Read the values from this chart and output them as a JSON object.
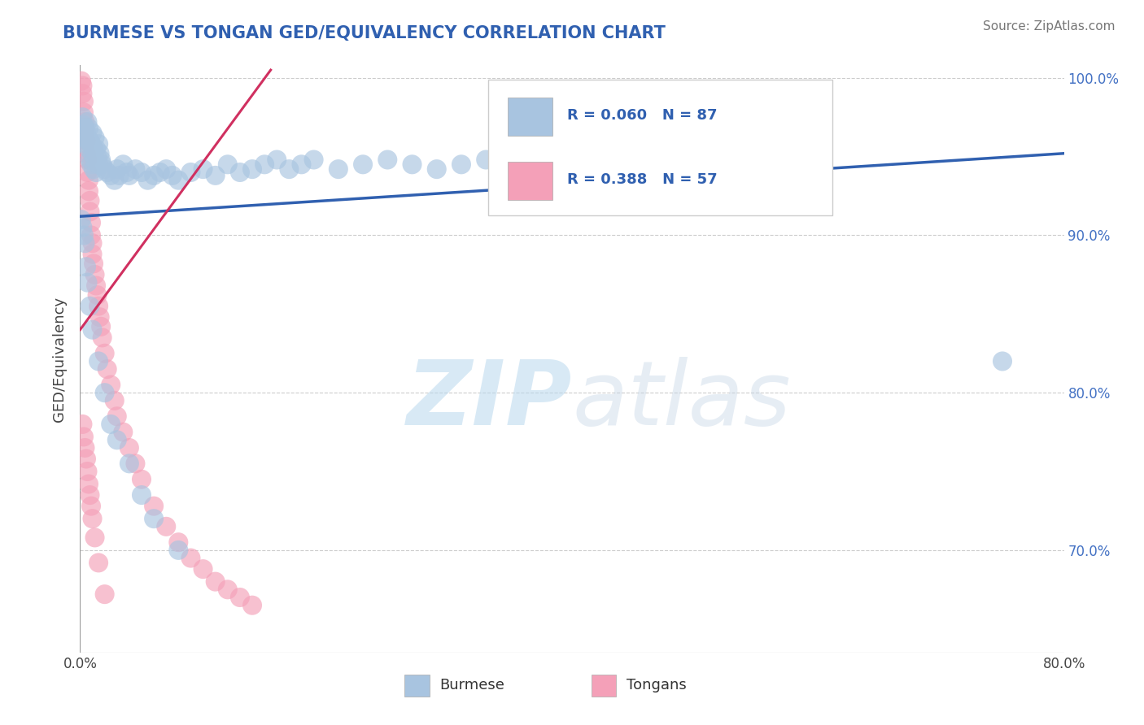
{
  "title": "BURMESE VS TONGAN GED/EQUIVALENCY CORRELATION CHART",
  "source_text": "Source: ZipAtlas.com",
  "ylabel": "GED/Equivalency",
  "xlim": [
    0.0,
    0.8
  ],
  "ylim": [
    0.635,
    1.008
  ],
  "xticks": [
    0.0,
    0.1,
    0.2,
    0.3,
    0.4,
    0.5,
    0.6,
    0.7,
    0.8
  ],
  "xticklabels": [
    "0.0%",
    "",
    "",
    "",
    "",
    "",
    "",
    "",
    "80.0%"
  ],
  "ytick_vals": [
    0.7,
    0.8,
    0.9,
    1.0
  ],
  "ytick_labels": [
    "70.0%",
    "80.0%",
    "90.0%",
    "100.0%"
  ],
  "grid_yticks": [
    0.7,
    0.8,
    0.9,
    1.0
  ],
  "blue_R": 0.06,
  "blue_N": 87,
  "pink_R": 0.388,
  "pink_N": 57,
  "blue_color": "#a8c4e0",
  "pink_color": "#f4a0b8",
  "blue_line_color": "#3060b0",
  "pink_line_color": "#d03060",
  "legend_blue_label": "Burmese",
  "legend_pink_label": "Tongans",
  "watermark": "ZIPatlas",
  "background_color": "#ffffff",
  "grid_color": "#cccccc",
  "title_color": "#3060b0",
  "blue_scatter_x": [
    0.002,
    0.003,
    0.004,
    0.004,
    0.005,
    0.005,
    0.006,
    0.006,
    0.007,
    0.007,
    0.008,
    0.008,
    0.009,
    0.009,
    0.01,
    0.01,
    0.011,
    0.011,
    0.012,
    0.012,
    0.013,
    0.013,
    0.014,
    0.015,
    0.015,
    0.016,
    0.017,
    0.018,
    0.02,
    0.022,
    0.025,
    0.028,
    0.03,
    0.032,
    0.035,
    0.038,
    0.04,
    0.045,
    0.05,
    0.055,
    0.06,
    0.065,
    0.07,
    0.075,
    0.08,
    0.09,
    0.1,
    0.11,
    0.12,
    0.13,
    0.14,
    0.15,
    0.16,
    0.17,
    0.18,
    0.19,
    0.21,
    0.23,
    0.25,
    0.27,
    0.29,
    0.31,
    0.33,
    0.35,
    0.37,
    0.39,
    0.42,
    0.45,
    0.48,
    0.52,
    0.001,
    0.002,
    0.003,
    0.004,
    0.005,
    0.006,
    0.008,
    0.01,
    0.015,
    0.02,
    0.025,
    0.03,
    0.04,
    0.05,
    0.06,
    0.08,
    0.75
  ],
  "blue_scatter_y": [
    0.975,
    0.97,
    0.968,
    0.962,
    0.965,
    0.958,
    0.972,
    0.96,
    0.968,
    0.955,
    0.96,
    0.948,
    0.958,
    0.945,
    0.965,
    0.952,
    0.955,
    0.942,
    0.962,
    0.948,
    0.955,
    0.94,
    0.95,
    0.958,
    0.945,
    0.952,
    0.948,
    0.945,
    0.942,
    0.94,
    0.938,
    0.935,
    0.942,
    0.938,
    0.945,
    0.94,
    0.938,
    0.942,
    0.94,
    0.935,
    0.938,
    0.94,
    0.942,
    0.938,
    0.935,
    0.94,
    0.942,
    0.938,
    0.945,
    0.94,
    0.942,
    0.945,
    0.948,
    0.942,
    0.945,
    0.948,
    0.942,
    0.945,
    0.948,
    0.945,
    0.942,
    0.945,
    0.948,
    0.942,
    0.945,
    0.95,
    0.948,
    0.952,
    0.95,
    0.955,
    0.91,
    0.905,
    0.9,
    0.895,
    0.88,
    0.87,
    0.855,
    0.84,
    0.82,
    0.8,
    0.78,
    0.77,
    0.755,
    0.735,
    0.72,
    0.7,
    0.82
  ],
  "pink_scatter_x": [
    0.001,
    0.002,
    0.002,
    0.003,
    0.003,
    0.004,
    0.004,
    0.005,
    0.005,
    0.006,
    0.006,
    0.007,
    0.007,
    0.008,
    0.008,
    0.009,
    0.009,
    0.01,
    0.01,
    0.011,
    0.012,
    0.013,
    0.014,
    0.015,
    0.016,
    0.017,
    0.018,
    0.02,
    0.022,
    0.025,
    0.028,
    0.03,
    0.035,
    0.04,
    0.045,
    0.05,
    0.06,
    0.07,
    0.08,
    0.09,
    0.1,
    0.11,
    0.12,
    0.13,
    0.14,
    0.002,
    0.003,
    0.004,
    0.005,
    0.006,
    0.007,
    0.008,
    0.009,
    0.01,
    0.012,
    0.015,
    0.02
  ],
  "pink_scatter_y": [
    0.998,
    0.995,
    0.99,
    0.985,
    0.978,
    0.972,
    0.965,
    0.96,
    0.952,
    0.948,
    0.94,
    0.935,
    0.928,
    0.922,
    0.915,
    0.908,
    0.9,
    0.895,
    0.888,
    0.882,
    0.875,
    0.868,
    0.862,
    0.855,
    0.848,
    0.842,
    0.835,
    0.825,
    0.815,
    0.805,
    0.795,
    0.785,
    0.775,
    0.765,
    0.755,
    0.745,
    0.728,
    0.715,
    0.705,
    0.695,
    0.688,
    0.68,
    0.675,
    0.67,
    0.665,
    0.78,
    0.772,
    0.765,
    0.758,
    0.75,
    0.742,
    0.735,
    0.728,
    0.72,
    0.708,
    0.692,
    0.672
  ],
  "blue_trendline_x": [
    0.0,
    0.8
  ],
  "blue_trendline_y": [
    0.912,
    0.952
  ],
  "pink_trendline_x": [
    0.0,
    0.155
  ],
  "pink_trendline_y": [
    0.84,
    1.005
  ]
}
